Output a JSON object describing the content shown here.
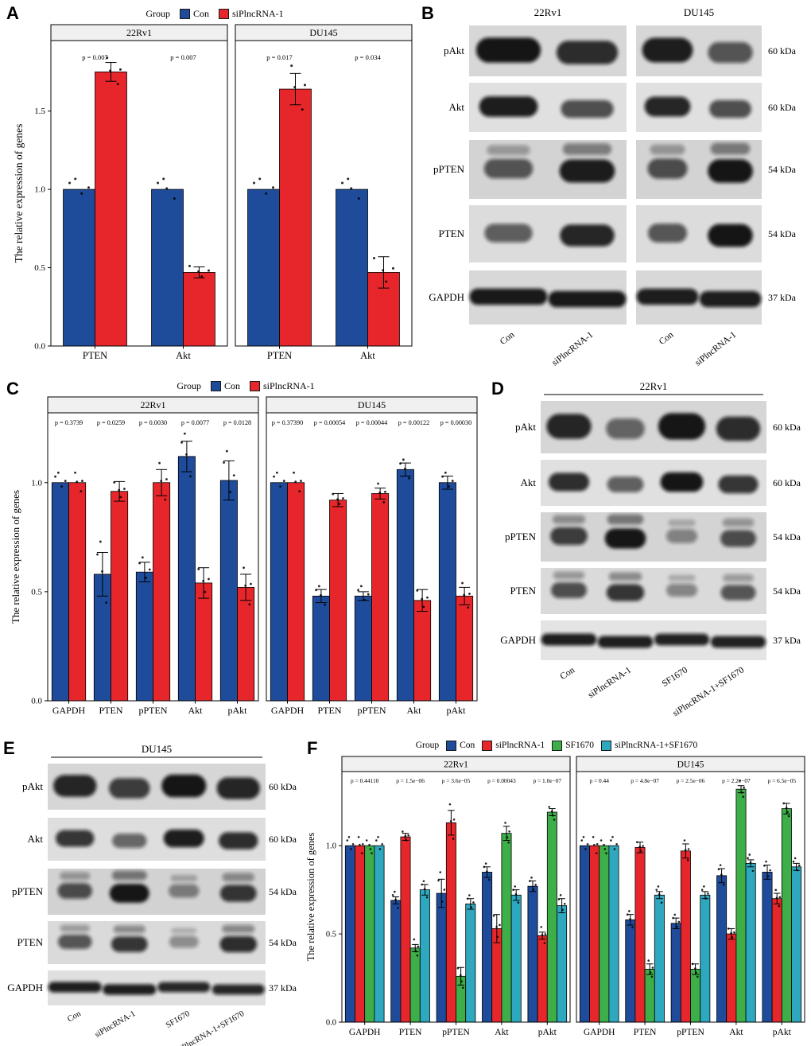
{
  "panel_labels": {
    "A": "A",
    "B": "B",
    "C": "C",
    "D": "D",
    "E": "E",
    "F": "F"
  },
  "colors": {
    "con": "#1E4C9B",
    "siPlncRNA1": "#E6262B",
    "sf1670": "#3EAE49",
    "siPlncRNA1_sf1670": "#2EA8BE",
    "strip_bg": "#F0F0F0",
    "band": "#121212"
  },
  "chart_data": [
    {
      "panel": "A",
      "type": "bar",
      "ylabel": "The relative expression of genes",
      "ylim": [
        0,
        1.95
      ],
      "yticks": [
        0,
        0.5,
        1.0,
        1.5
      ],
      "legend": {
        "title": "Group",
        "entries": [
          {
            "label": "Con",
            "color": "#1E4C9B"
          },
          {
            "label": "siPlncRNA-1",
            "color": "#E6262B"
          }
        ]
      },
      "facets": [
        {
          "label": "22Rv1",
          "categories": [
            "PTEN",
            "Akt"
          ],
          "p_values": [
            "p = 0.007",
            "p = 0.007"
          ],
          "series": [
            {
              "name": "Con",
              "color": "#1E4C9B",
              "values": [
                1.0,
                1.0
              ],
              "errors": [
                0.005,
                0.005
              ]
            },
            {
              "name": "siPlncRNA-1",
              "color": "#E6262B",
              "values": [
                1.75,
                0.47
              ],
              "errors": [
                0.06,
                0.035
              ]
            }
          ]
        },
        {
          "label": "DU145",
          "categories": [
            "PTEN",
            "Akt"
          ],
          "p_values": [
            "p = 0.017",
            "p = 0.034"
          ],
          "series": [
            {
              "name": "Con",
              "color": "#1E4C9B",
              "values": [
                1.0,
                1.0
              ],
              "errors": [
                0.005,
                0.005
              ]
            },
            {
              "name": "siPlncRNA-1",
              "color": "#E6262B",
              "values": [
                1.64,
                0.47
              ],
              "errors": [
                0.1,
                0.1
              ]
            }
          ]
        }
      ]
    },
    {
      "panel": "C",
      "type": "bar",
      "ylabel": "The relative expression of genes",
      "ylim": [
        0,
        1.32
      ],
      "yticks": [
        0,
        0.5,
        1.0
      ],
      "legend": {
        "title": "Group",
        "entries": [
          {
            "label": "Con",
            "color": "#1E4C9B"
          },
          {
            "label": "siPlncRNA-1",
            "color": "#E6262B"
          }
        ]
      },
      "facets": [
        {
          "label": "22Rv1",
          "categories": [
            "GAPDH",
            "PTEN",
            "pPTEN",
            "Akt",
            "pAkt"
          ],
          "p_values": [
            "p = 0.3739",
            "p = 0.0259",
            "p = 0.0030",
            "p = 0.0077",
            "p = 0.0128"
          ],
          "series": [
            {
              "name": "Con",
              "color": "#1E4C9B",
              "values": [
                1.0,
                0.58,
                0.59,
                1.12,
                1.01
              ],
              "errors": [
                0.004,
                0.1,
                0.045,
                0.07,
                0.09
              ]
            },
            {
              "name": "siPlncRNA-1",
              "color": "#E6262B",
              "values": [
                1.0,
                0.96,
                1.0,
                0.54,
                0.52
              ],
              "errors": [
                0.004,
                0.045,
                0.06,
                0.07,
                0.06
              ]
            }
          ]
        },
        {
          "label": "DU145",
          "categories": [
            "GAPDH",
            "PTEN",
            "pPTEN",
            "Akt",
            "pAkt"
          ],
          "p_values": [
            "p = 0.37390",
            "p = 0.00054",
            "p = 0.00044",
            "p = 0.00122",
            "p = 0.00030"
          ],
          "series": [
            {
              "name": "Con",
              "color": "#1E4C9B",
              "values": [
                1.0,
                0.48,
                0.48,
                1.06,
                1.0
              ],
              "errors": [
                0.004,
                0.03,
                0.02,
                0.03,
                0.03
              ]
            },
            {
              "name": "siPlncRNA-1",
              "color": "#E6262B",
              "values": [
                1.0,
                0.92,
                0.95,
                0.46,
                0.48
              ],
              "errors": [
                0.004,
                0.03,
                0.025,
                0.05,
                0.04
              ]
            }
          ]
        }
      ]
    },
    {
      "panel": "F",
      "type": "bar",
      "ylabel": "The relative expression of genes",
      "ylim": [
        0,
        1.42
      ],
      "yticks": [
        0,
        0.5,
        1.0
      ],
      "legend": {
        "title": "Group",
        "entries": [
          {
            "label": "Con",
            "color": "#1E4C9B"
          },
          {
            "label": "siPlncRNA-1",
            "color": "#E6262B"
          },
          {
            "label": "SF1670",
            "color": "#3EAE49"
          },
          {
            "label": "siPlncRNA-1+SF1670",
            "color": "#2EA8BE"
          }
        ]
      },
      "facets": [
        {
          "label": "22Rv1",
          "categories": [
            "GAPDH",
            "PTEN",
            "pPTEN",
            "Akt",
            "pAkt"
          ],
          "p_values": [
            "p = 0.44110",
            "p = 1.5e−06",
            "p = 3.6e−05",
            "p = 0.00043",
            "p = 1.0e−07"
          ],
          "series": [
            {
              "name": "Con",
              "color": "#1E4C9B",
              "values": [
                1.0,
                0.69,
                0.73,
                0.85,
                0.77
              ],
              "errors": [
                0.004,
                0.02,
                0.08,
                0.03,
                0.03
              ]
            },
            {
              "name": "siPlncRNA-1",
              "color": "#E6262B",
              "values": [
                1.0,
                1.05,
                1.13,
                0.53,
                0.49
              ],
              "errors": [
                0.004,
                0.02,
                0.07,
                0.08,
                0.02
              ]
            },
            {
              "name": "SF1670",
              "color": "#3EAE49",
              "values": [
                1.0,
                0.42,
                0.26,
                1.07,
                1.19
              ],
              "errors": [
                0.004,
                0.02,
                0.05,
                0.04,
                0.02
              ]
            },
            {
              "name": "siPlncRNA-1+SF1670",
              "color": "#2EA8BE",
              "values": [
                1.0,
                0.75,
                0.67,
                0.72,
                0.66
              ],
              "errors": [
                0.004,
                0.03,
                0.03,
                0.03,
                0.04
              ]
            }
          ]
        },
        {
          "label": "DU145",
          "categories": [
            "GAPDH",
            "PTEN",
            "pPTEN",
            "Akt",
            "pAkt"
          ],
          "p_values": [
            "p = 0.44",
            "p = 4.8e−07",
            "p = 2.5e−06",
            "p = 2.2e−07",
            "p = 6.5e−05"
          ],
          "series": [
            {
              "name": "Con",
              "color": "#1E4C9B",
              "values": [
                1.0,
                0.58,
                0.56,
                0.83,
                0.85
              ],
              "errors": [
                0.004,
                0.03,
                0.03,
                0.04,
                0.04
              ]
            },
            {
              "name": "siPlncRNA-1",
              "color": "#E6262B",
              "values": [
                1.0,
                0.99,
                0.97,
                0.5,
                0.7
              ],
              "errors": [
                0.004,
                0.03,
                0.04,
                0.03,
                0.03
              ]
            },
            {
              "name": "SF1670",
              "color": "#3EAE49",
              "values": [
                1.0,
                0.3,
                0.3,
                1.32,
                1.21
              ],
              "errors": [
                0.004,
                0.03,
                0.03,
                0.02,
                0.03
              ]
            },
            {
              "name": "siPlncRNA-1+SF1670",
              "color": "#2EA8BE",
              "values": [
                1.0,
                0.72,
                0.72,
                0.9,
                0.88
              ],
              "errors": [
                0.004,
                0.02,
                0.02,
                0.02,
                0.02
              ]
            }
          ]
        }
      ]
    }
  ],
  "blot_data": [
    {
      "panel": "B",
      "headers": [
        "22Rv1",
        "DU145"
      ],
      "lane_labels": [
        "Con",
        "siPlncRNA-1",
        "Con",
        "siPlncRNA-1"
      ],
      "rows": [
        {
          "target": "pAkt",
          "kda": "60 kDa",
          "intensities": [
            [
              0.95,
              0.8
            ],
            [
              0.9,
              0.55
            ]
          ]
        },
        {
          "target": "Akt",
          "kda": "60 kDa",
          "intensities": [
            [
              0.9,
              0.6
            ],
            [
              0.85,
              0.6
            ]
          ]
        },
        {
          "target": "pPTEN",
          "kda": "54 kDa",
          "double": true,
          "intensities": [
            [
              0.55,
              0.9
            ],
            [
              0.6,
              0.95
            ]
          ]
        },
        {
          "target": "PTEN",
          "kda": "54 kDa",
          "intensities": [
            [
              0.5,
              0.85
            ],
            [
              0.55,
              0.95
            ]
          ]
        },
        {
          "target": "GAPDH",
          "kda": "37 kDa",
          "intensities": [
            [
              0.92,
              0.92
            ],
            [
              0.9,
              0.9
            ]
          ]
        }
      ]
    },
    {
      "panel": "D",
      "headers": [
        "22Rv1"
      ],
      "lane_labels": [
        "Con",
        "siPlncRNA-1",
        "SF1670",
        "siPlncRNA-1+SF1670"
      ],
      "rows": [
        {
          "target": "pAkt",
          "kda": "60 kDa",
          "intensities": [
            [
              0.85,
              0.45,
              1.0,
              0.8
            ]
          ]
        },
        {
          "target": "Akt",
          "kda": "60 kDa",
          "intensities": [
            [
              0.8,
              0.5,
              0.95,
              0.75
            ]
          ]
        },
        {
          "target": "pPTEN",
          "kda": "54 kDa",
          "double": true,
          "intensities": [
            [
              0.7,
              1.0,
              0.25,
              0.6
            ]
          ]
        },
        {
          "target": "PTEN",
          "kda": "54 kDa",
          "double": true,
          "intensities": [
            [
              0.6,
              0.75,
              0.25,
              0.55
            ]
          ]
        },
        {
          "target": "GAPDH",
          "kda": "37 kDa",
          "intensities": [
            [
              0.9,
              0.9,
              0.88,
              0.88
            ]
          ]
        }
      ]
    },
    {
      "panel": "E",
      "headers": [
        "DU145"
      ],
      "lane_labels": [
        "Con",
        "siPlncRNA-1",
        "SF1670",
        "siPlncRNA-1+SF1670"
      ],
      "rows": [
        {
          "target": "pAkt",
          "kda": "60 kDa",
          "intensities": [
            [
              0.85,
              0.7,
              0.95,
              0.85
            ]
          ]
        },
        {
          "target": "Akt",
          "kda": "60 kDa",
          "intensities": [
            [
              0.75,
              0.45,
              0.9,
              0.8
            ]
          ]
        },
        {
          "target": "pPTEN",
          "kda": "54 kDa",
          "double": true,
          "intensities": [
            [
              0.6,
              1.0,
              0.3,
              0.75
            ]
          ]
        },
        {
          "target": "PTEN",
          "kda": "54 kDa",
          "double": true,
          "intensities": [
            [
              0.55,
              0.75,
              0.2,
              0.8
            ]
          ]
        },
        {
          "target": "GAPDH",
          "kda": "37 kDa",
          "intensities": [
            [
              0.9,
              0.9,
              0.85,
              0.85
            ]
          ]
        }
      ]
    }
  ]
}
